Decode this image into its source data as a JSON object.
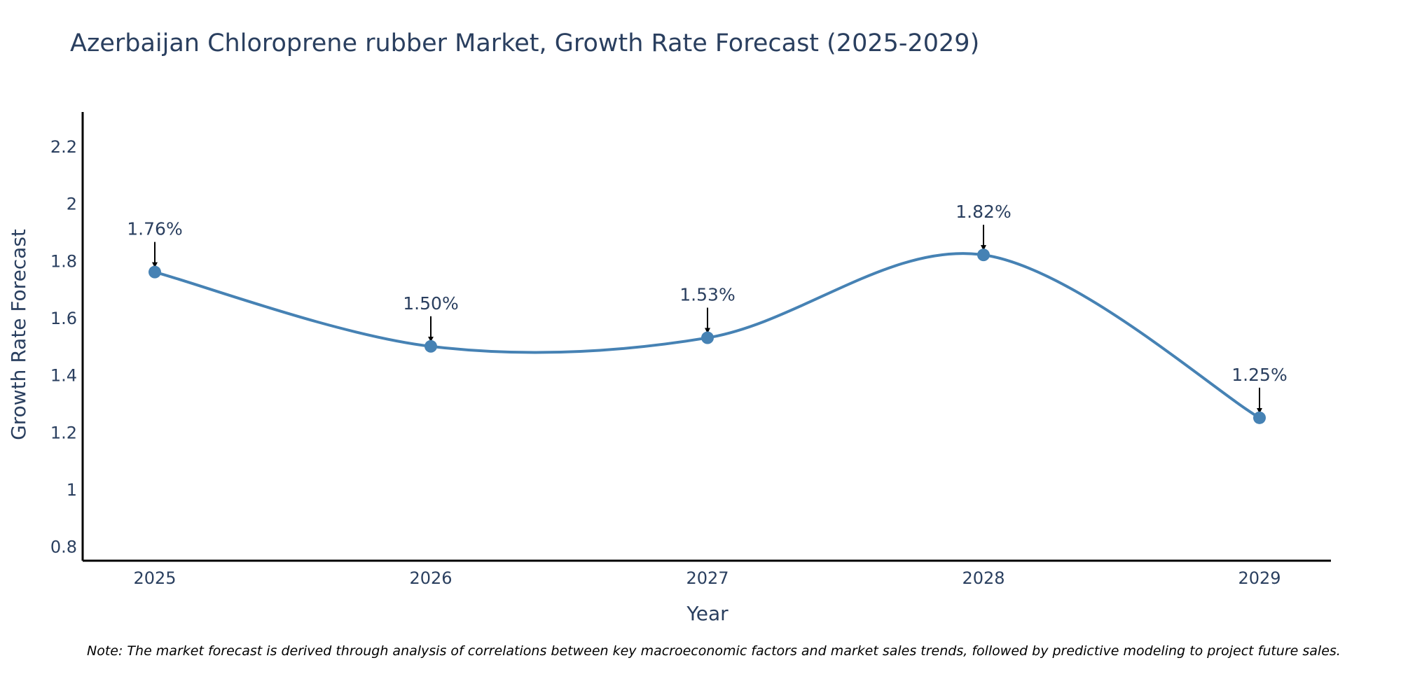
{
  "chart_data": {
    "type": "line",
    "title": "Azerbaijan Chloroprene rubber Market, Growth Rate Forecast (2025-2029)",
    "xlabel": "Year",
    "ylabel": "Growth Rate Forecast",
    "categories": [
      "2025",
      "2026",
      "2027",
      "2028",
      "2029"
    ],
    "values": [
      1.76,
      1.5,
      1.53,
      1.82,
      1.25
    ],
    "data_labels": [
      "1.76%",
      "1.50%",
      "1.53%",
      "1.82%",
      "1.25%"
    ],
    "ylim": [
      0.75,
      2.32
    ],
    "yticks": [
      0.8,
      1,
      1.2,
      1.4,
      1.6,
      1.8,
      2,
      2.2
    ],
    "ytick_labels": [
      "0.8",
      "1",
      "1.2",
      "1.4",
      "1.6",
      "1.8",
      "2",
      "2.2"
    ],
    "line_shape": "spline",
    "grid": false,
    "note": "Note: The market forecast is derived through analysis of correlations between key macroeconomic factors and market sales trends, followed by predictive modeling to project future sales."
  },
  "colors": {
    "line": "#4682b4",
    "marker": "#4682b4",
    "axis": "#000000",
    "text": "#2a3f5f",
    "arrow": "#000000"
  }
}
